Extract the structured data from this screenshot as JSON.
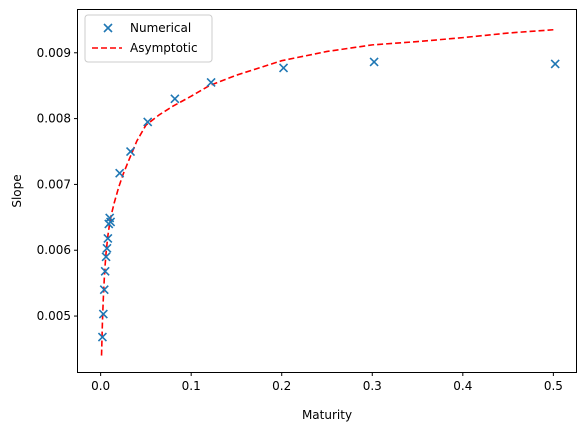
{
  "chart_data": {
    "type": "scatter",
    "title": "",
    "xlabel": "Maturity",
    "ylabel": "Slope",
    "xlim": [
      -0.025,
      0.525
    ],
    "ylim": [
      0.00415,
      0.00965
    ],
    "xticks": [
      0.0,
      0.1,
      0.2,
      0.3,
      0.4,
      0.5
    ],
    "xtick_labels": [
      "0.0",
      "0.1",
      "0.2",
      "0.3",
      "0.4",
      "0.5"
    ],
    "yticks": [
      0.005,
      0.006,
      0.007,
      0.008,
      0.009
    ],
    "ytick_labels": [
      "0.005",
      "0.006",
      "0.007",
      "0.008",
      "0.009"
    ],
    "grid": false,
    "legend_position": "top-left",
    "series": [
      {
        "name": "Numerical",
        "kind": "scatter",
        "marker": "x",
        "color": "#1f77b4",
        "x": [
          0.002,
          0.003,
          0.004,
          0.005,
          0.006,
          0.007,
          0.008,
          0.009,
          0.01,
          0.011,
          0.021,
          0.033,
          0.052,
          0.082,
          0.122,
          0.202,
          0.302,
          0.502
        ],
        "y": [
          0.00468,
          0.00503,
          0.0054,
          0.00568,
          0.0059,
          0.00603,
          0.00618,
          0.0064,
          0.00649,
          0.00643,
          0.00717,
          0.0075,
          0.00795,
          0.0083,
          0.00855,
          0.00877,
          0.00886,
          0.00883
        ]
      },
      {
        "name": "Asymptotic",
        "kind": "line",
        "dash": "dashed",
        "color": "#ff0000",
        "x": [
          0.001,
          0.002,
          0.003,
          0.004,
          0.005,
          0.006,
          0.008,
          0.01,
          0.012,
          0.015,
          0.02,
          0.025,
          0.03,
          0.04,
          0.05,
          0.065,
          0.08,
          0.1,
          0.12,
          0.15,
          0.2,
          0.25,
          0.3,
          0.35,
          0.4,
          0.45,
          0.5
        ],
        "y": [
          0.0044,
          0.00492,
          0.00528,
          0.00556,
          0.00578,
          0.00596,
          0.00622,
          0.00641,
          0.00655,
          0.00672,
          0.00696,
          0.00716,
          0.00733,
          0.00766,
          0.0079,
          0.00806,
          0.00819,
          0.00834,
          0.0085,
          0.00866,
          0.00888,
          0.00902,
          0.00912,
          0.00917,
          0.00923,
          0.0093,
          0.00935
        ]
      }
    ]
  }
}
